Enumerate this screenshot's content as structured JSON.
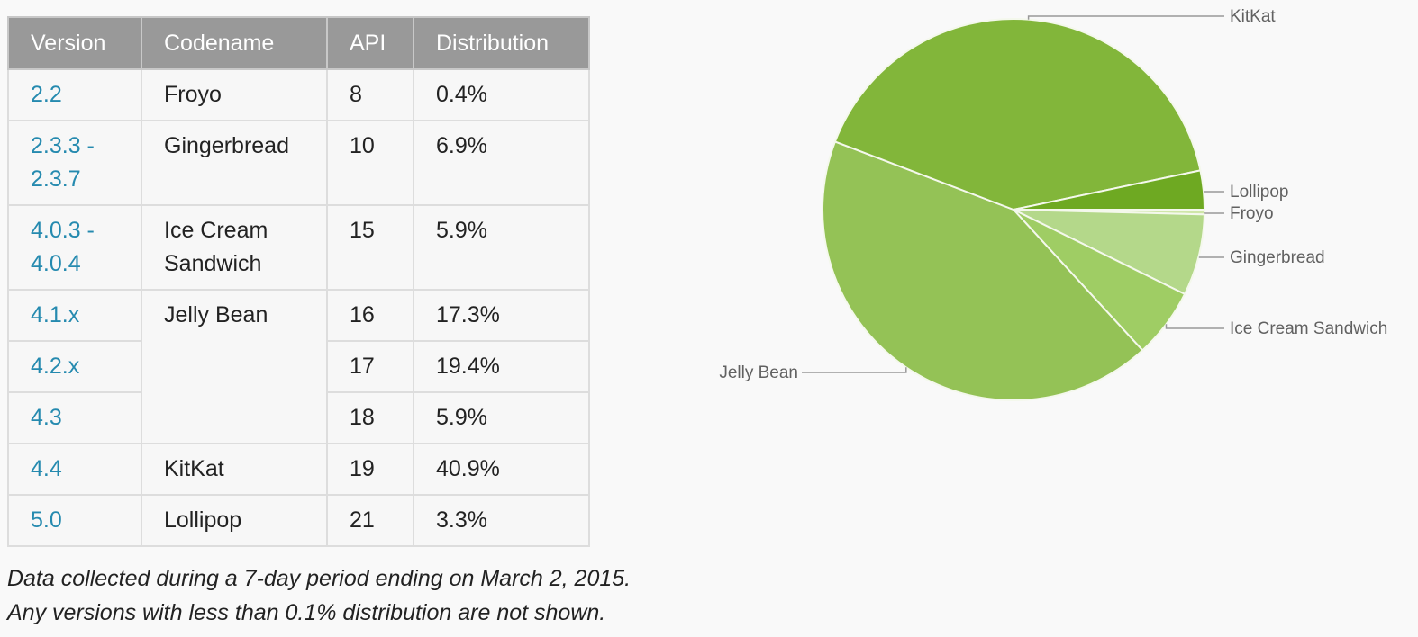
{
  "table": {
    "headers": [
      "Version",
      "Codename",
      "API",
      "Distribution"
    ],
    "rows": [
      {
        "version": "2.2",
        "codename": "Froyo",
        "api": "8",
        "distribution": "0.4%"
      },
      {
        "version": "2.3.3 -\n2.3.7",
        "codename": "Gingerbread",
        "api": "10",
        "distribution": "6.9%"
      },
      {
        "version": "4.0.3 -\n4.0.4",
        "codename": "Ice Cream\nSandwich",
        "api": "15",
        "distribution": "5.9%"
      },
      {
        "version": "4.1.x",
        "codename": "Jelly Bean",
        "api": "16",
        "distribution": "17.3%"
      },
      {
        "version": "4.2.x",
        "codename": "",
        "api": "17",
        "distribution": "19.4%"
      },
      {
        "version": "4.3",
        "codename": "",
        "api": "18",
        "distribution": "5.9%"
      },
      {
        "version": "4.4",
        "codename": "KitKat",
        "api": "19",
        "distribution": "40.9%"
      },
      {
        "version": "5.0",
        "codename": "Lollipop",
        "api": "21",
        "distribution": "3.3%"
      }
    ]
  },
  "footnote": {
    "line1": "Data collected during a 7-day period ending on March 2, 2015.",
    "line2": "Any versions with less than 0.1% distribution are not shown."
  },
  "colors": {
    "version_link": "#258aaf",
    "header_bg": "#999999",
    "slice_border": "#f4f8ec"
  },
  "chart_data": {
    "type": "pie",
    "slices": [
      {
        "label": "Froyo",
        "value": 0.4,
        "color": "#cfe6a8"
      },
      {
        "label": "Gingerbread",
        "value": 6.9,
        "color": "#b4d88a"
      },
      {
        "label": "Ice Cream Sandwich",
        "value": 5.9,
        "color": "#9fcd64"
      },
      {
        "label": "Jelly Bean",
        "value": 42.6,
        "color": "#94c256"
      },
      {
        "label": "KitKat",
        "value": 40.9,
        "color": "#82b63a"
      },
      {
        "label": "Lollipop",
        "value": 3.3,
        "color": "#6ea922"
      }
    ],
    "start": "3 o'clock",
    "direction": "clockwise"
  }
}
